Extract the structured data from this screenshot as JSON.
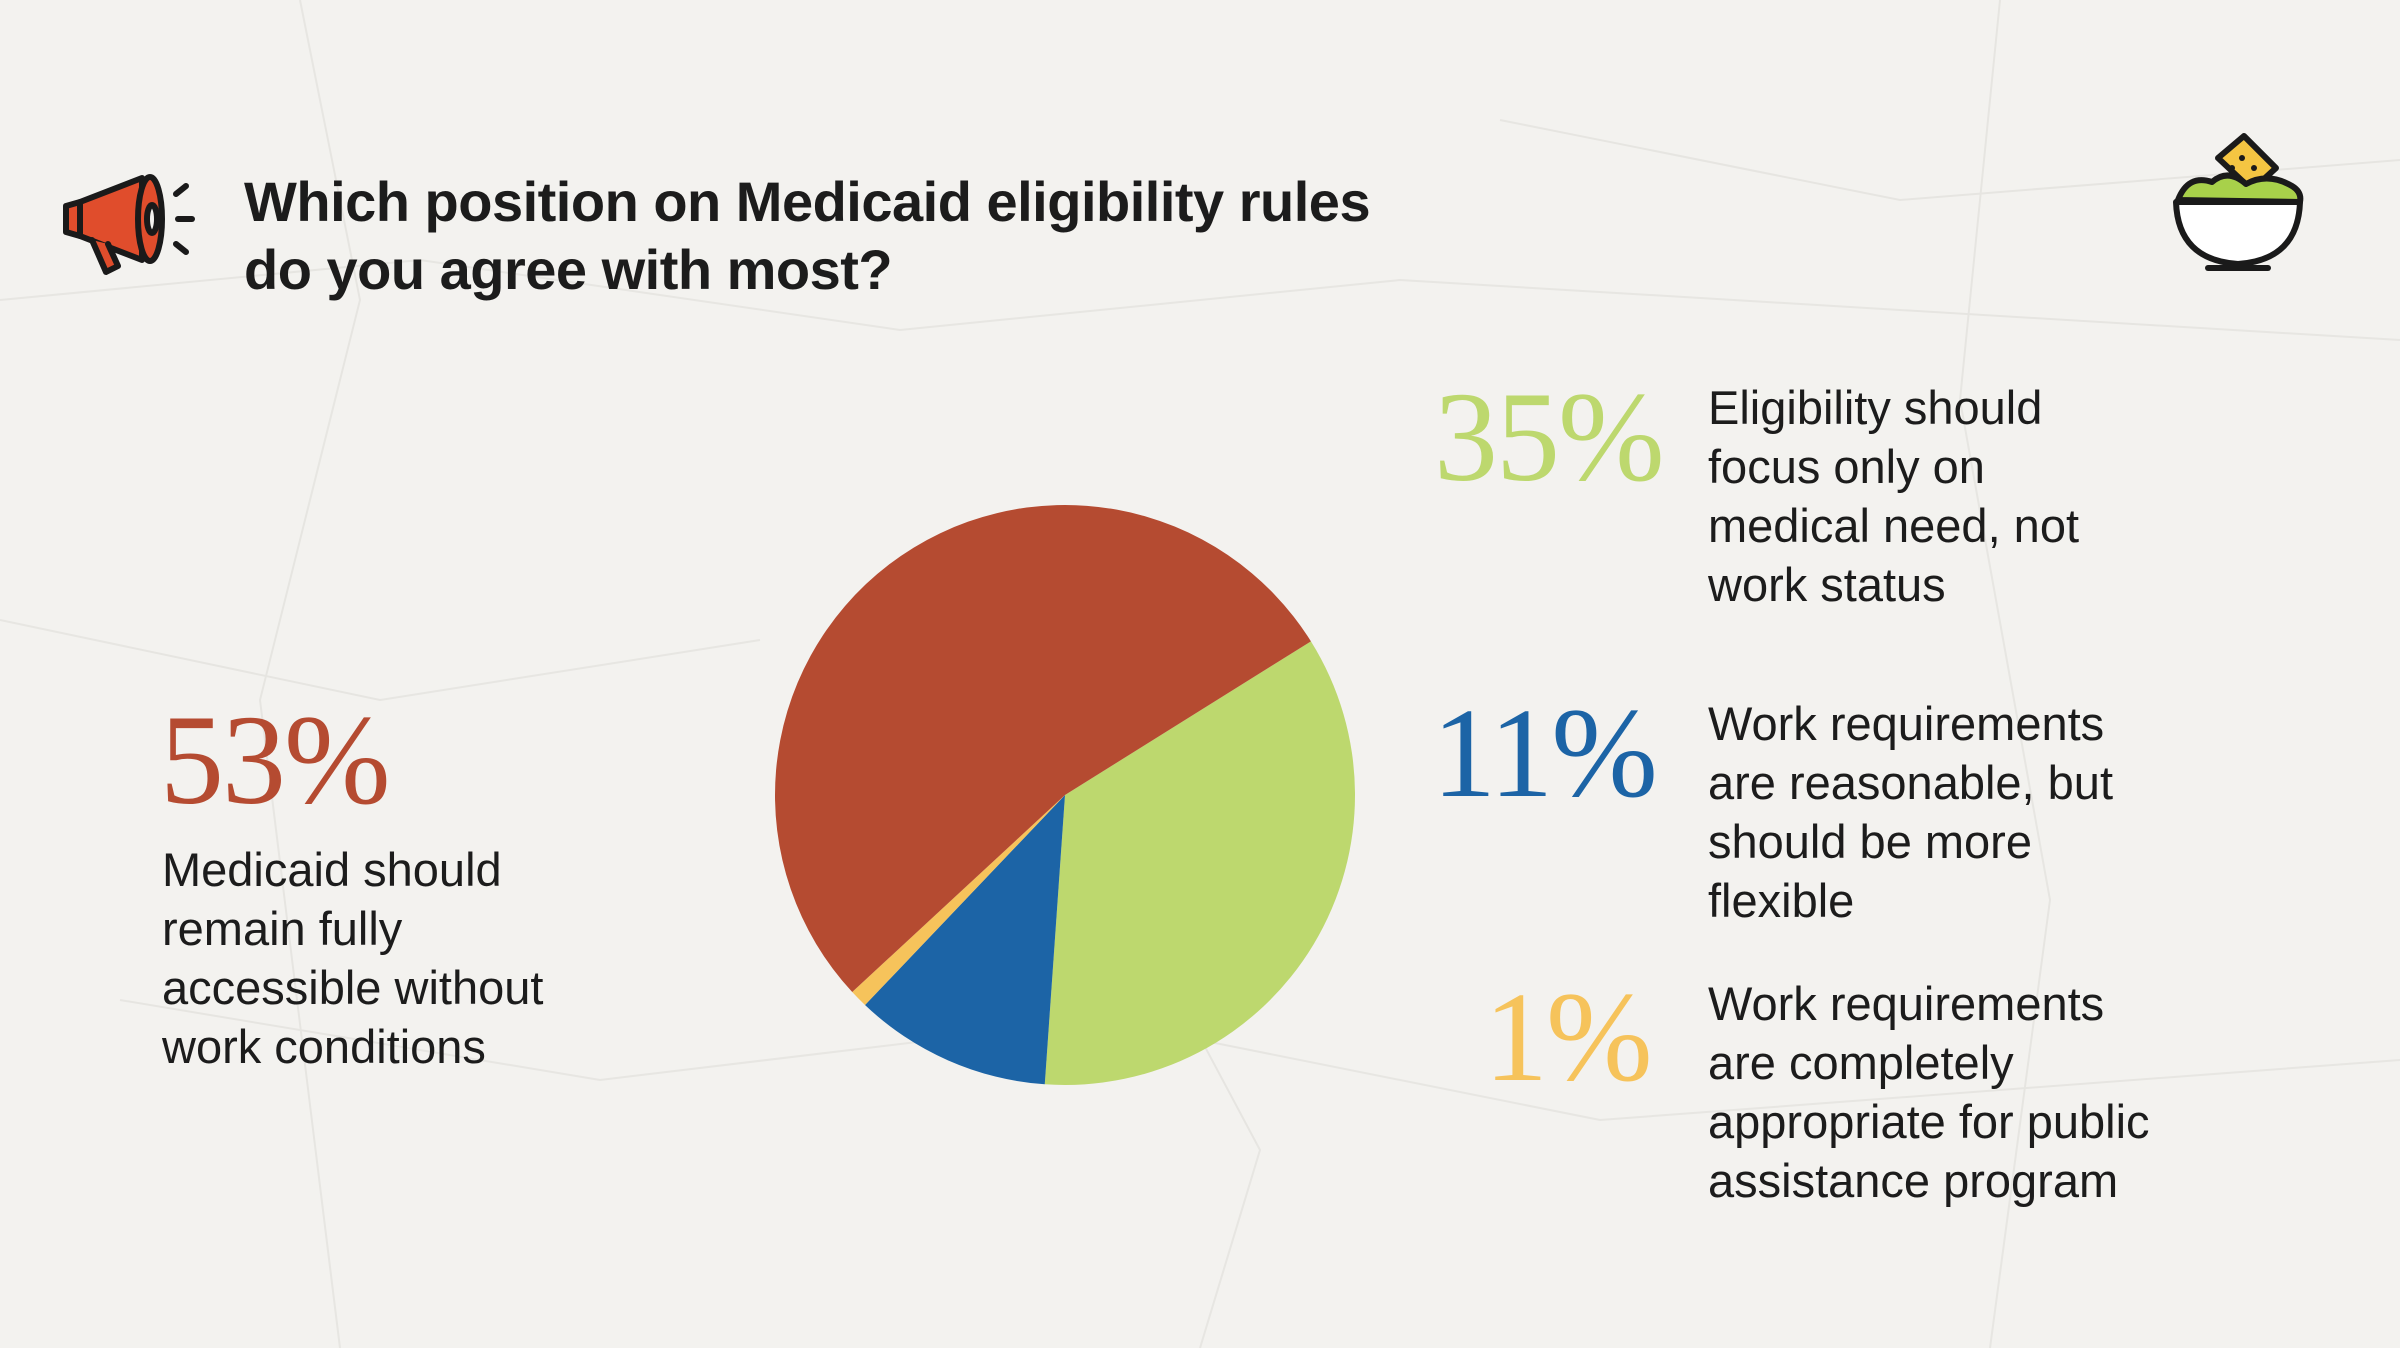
{
  "title": {
    "line1": "Which position on Medicaid eligibility rules",
    "line2": "do you agree with most?"
  },
  "icons": {
    "megaphone": "megaphone-icon",
    "guacamole": "guacamole-bowl-icon"
  },
  "chart_data": {
    "type": "pie",
    "title": "Which position on Medicaid eligibility rules do you agree with most?",
    "series": [
      {
        "name": "Eligibility should focus only on medical need, not work status",
        "value": 35,
        "label": "35%",
        "color": "#bdd86e",
        "desc_lines": [
          "Eligibility should",
          "focus only on",
          "medical need, not",
          "work status"
        ]
      },
      {
        "name": "Work requirements are reasonable, but should be more flexible",
        "value": 11,
        "label": "11%",
        "color": "#1c64a6",
        "desc_lines": [
          "Work requirements",
          "are reasonable, but",
          "should be more",
          "flexible"
        ]
      },
      {
        "name": "Work requirements are completely appropriate for public assistance program",
        "value": 1,
        "label": "1%",
        "color": "#f6c35b",
        "desc_lines": [
          "Work requirements",
          "are completely",
          "appropriate for public",
          "assistance program"
        ]
      },
      {
        "name": "Medicaid should remain fully accessible without work conditions",
        "value": 53,
        "label": "53%",
        "color": "#b54b31",
        "desc_lines": [
          "Medicaid should",
          "remain fully",
          "accessible without",
          "work conditions"
        ]
      }
    ],
    "start_angle_deg": -32
  }
}
